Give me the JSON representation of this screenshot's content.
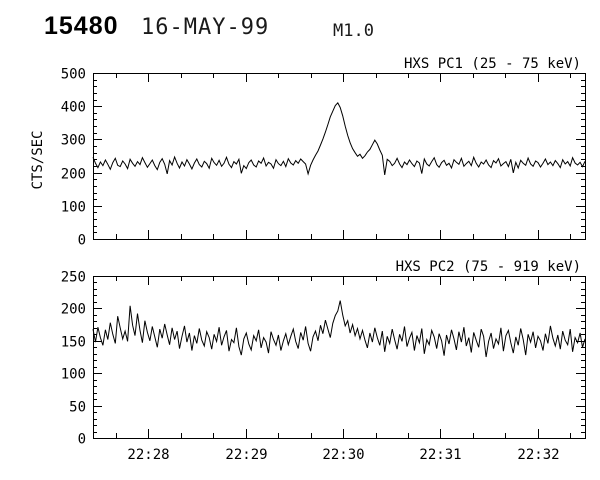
{
  "header": {
    "event_number": "15480",
    "date": "16-MAY-99",
    "flare_class": "M1.0"
  },
  "chart_data": [
    {
      "type": "line",
      "title": "HXS PC1 (25 - 75 keV)",
      "instrument": "HXS PC1",
      "energy_band": "25 - 75 keV",
      "ylabel": "CTS/SEC",
      "ylim": [
        0,
        500
      ],
      "yticks": [
        0,
        100,
        200,
        300,
        400,
        500
      ],
      "y_minor_step": 20,
      "grid": false,
      "legend": "none",
      "x_start": "22:27:26",
      "x_end": "22:32:29",
      "x_span_seconds": 303,
      "x_major_ticks": [
        {
          "s": 34,
          "label": "22:28"
        },
        {
          "s": 94,
          "label": "22:29"
        },
        {
          "s": 154,
          "label": "22:30"
        },
        {
          "s": 214,
          "label": "22:31"
        },
        {
          "s": 274,
          "label": "22:32"
        }
      ],
      "x_minor_step_seconds": 20,
      "x_minor_offset_seconds": 14,
      "show_x_labels": false,
      "peak": {
        "time": "22:29:57",
        "value": 410
      },
      "baseline": 225,
      "values": [
        246,
        228,
        215,
        232,
        221,
        238,
        225,
        210,
        230,
        243,
        222,
        218,
        235,
        226,
        212,
        240,
        228,
        219,
        233,
        224,
        245,
        230,
        216,
        227,
        238,
        221,
        209,
        231,
        242,
        225,
        196,
        236,
        223,
        247,
        228,
        214,
        232,
        220,
        239,
        226,
        211,
        229,
        241,
        224,
        217,
        234,
        227,
        213,
        243,
        230,
        222,
        237,
        219,
        228,
        246,
        225,
        215,
        233,
        226,
        240,
        198,
        221,
        212,
        230,
        238,
        223,
        217,
        235,
        228,
        244,
        220,
        231,
        226,
        213,
        239,
        227,
        221,
        234,
        218,
        242,
        229,
        223,
        236,
        228,
        241,
        233,
        226,
        196,
        222,
        238,
        252,
        265,
        283,
        301,
        322,
        345,
        368,
        385,
        402,
        410,
        396,
        371,
        340,
        312,
        290,
        272,
        260,
        249,
        255,
        243,
        251,
        262,
        270,
        284,
        298,
        286,
        268,
        252,
        193,
        240,
        234,
        221,
        228,
        243,
        226,
        215,
        232,
        224,
        238,
        227,
        218,
        235,
        229,
        197,
        241,
        226,
        220,
        233,
        245,
        224,
        216,
        230,
        237,
        222,
        228,
        214,
        239,
        231,
        225,
        243,
        219,
        227,
        234,
        221,
        246,
        228,
        217,
        232,
        226,
        238,
        223,
        215,
        236,
        229,
        242,
        220,
        227,
        233,
        218,
        240,
        199,
        231,
        214,
        237,
        228,
        222,
        244,
        226,
        219,
        235,
        230,
        217,
        228,
        241,
        224,
        232,
        221,
        236,
        227,
        215,
        239,
        226,
        233,
        220,
        245,
        229,
        223,
        231,
        218,
        234
      ]
    },
    {
      "type": "line",
      "title": "HXS PC2 (75 - 919 keV)",
      "instrument": "HXS PC2",
      "energy_band": "75 - 919 keV",
      "ylabel": "",
      "ylim": [
        0,
        250
      ],
      "yticks": [
        0,
        50,
        100,
        150,
        200,
        250
      ],
      "y_minor_step": 10,
      "grid": false,
      "legend": "none",
      "x_start": "22:27:26",
      "x_end": "22:32:29",
      "x_span_seconds": 303,
      "x_major_ticks": [
        {
          "s": 34,
          "label": "22:28"
        },
        {
          "s": 94,
          "label": "22:29"
        },
        {
          "s": 154,
          "label": "22:30"
        },
        {
          "s": 214,
          "label": "22:31"
        },
        {
          "s": 274,
          "label": "22:32"
        }
      ],
      "x_minor_step_seconds": 20,
      "x_minor_offset_seconds": 14,
      "show_x_labels": true,
      "peak": {
        "time": "22:29:58",
        "value": 212
      },
      "baseline": 155,
      "values": [
        168,
        148,
        171,
        155,
        143,
        167,
        152,
        178,
        160,
        146,
        188,
        170,
        153,
        165,
        149,
        204,
        174,
        158,
        192,
        166,
        147,
        181,
        163,
        150,
        172,
        156,
        140,
        168,
        154,
        176,
        159,
        144,
        170,
        152,
        165,
        138,
        157,
        173,
        148,
        162,
        135,
        158,
        146,
        169,
        151,
        142,
        164,
        155,
        137,
        160,
        149,
        171,
        143,
        156,
        166,
        134,
        152,
        147,
        170,
        141,
        128,
        153,
        162,
        145,
        136,
        158,
        150,
        167,
        139,
        155,
        148,
        131,
        164,
        152,
        143,
        159,
        135,
        150,
        161,
        144,
        157,
        168,
        149,
        138,
        163,
        151,
        172,
        146,
        134,
        156,
        165,
        150,
        174,
        161,
        182,
        168,
        155,
        177,
        189,
        196,
        212,
        190,
        173,
        181,
        162,
        175,
        158,
        169,
        153,
        166,
        151,
        139,
        162,
        148,
        170,
        155,
        143,
        165,
        133,
        157,
        146,
        168,
        152,
        137,
        160,
        149,
        172,
        141,
        154,
        163,
        135,
        158,
        147,
        169,
        130,
        152,
        144,
        166,
        156,
        138,
        161,
        150,
        127,
        159,
        145,
        167,
        153,
        136,
        164,
        148,
        171,
        142,
        155,
        132,
        163,
        151,
        140,
        168,
        157,
        125,
        149,
        162,
        138,
        153,
        145,
        170,
        134,
        158,
        166,
        147,
        131,
        156,
        143,
        169,
        152,
        128,
        160,
        148,
        164,
        139,
        157,
        150,
        135,
        161,
        146,
        173,
        154,
        142,
        159,
        137,
        165,
        151,
        144,
        168,
        133,
        155,
        147,
        162,
        140,
        153
      ]
    }
  ]
}
